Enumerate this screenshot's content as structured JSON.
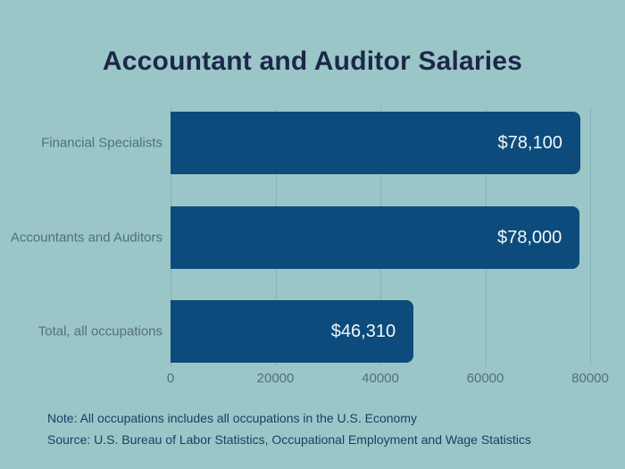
{
  "title": "Accountant and Auditor Salaries",
  "note": "Note: All occupations includes all occupations in the U.S. Economy",
  "source": "Source: U.S. Bureau of Labor Statistics, Occupational Employment and Wage Statistics",
  "colors": {
    "background": "#9ac6c8",
    "bar": "#0d4b7c",
    "title_text": "#1e2749",
    "axis_text": "#53707a",
    "gridline": "#85b3b7",
    "value_text": "#f2f8f8",
    "note_text": "#1c3e63"
  },
  "chart_data": {
    "type": "bar",
    "orientation": "horizontal",
    "title": "Accountant and Auditor Salaries",
    "categories": [
      "Financial Specialists",
      "Accountants and Auditors",
      "Total, all occupations"
    ],
    "values": [
      78100,
      78000,
      46310
    ],
    "value_labels": [
      "$78,100",
      "$78,000",
      "$46,310"
    ],
    "xlabel": "",
    "ylabel": "",
    "xlim": [
      0,
      80000
    ],
    "x_ticks": [
      0,
      20000,
      40000,
      60000,
      80000
    ],
    "x_tick_labels": [
      "0",
      "20000",
      "40000",
      "60000",
      "80000"
    ],
    "grid": true,
    "legend": false,
    "annotations": [
      "Note: All occupations includes all occupations in the U.S. Economy",
      "Source: U.S. Bureau of Labor Statistics, Occupational Employment and Wage Statistics"
    ]
  }
}
